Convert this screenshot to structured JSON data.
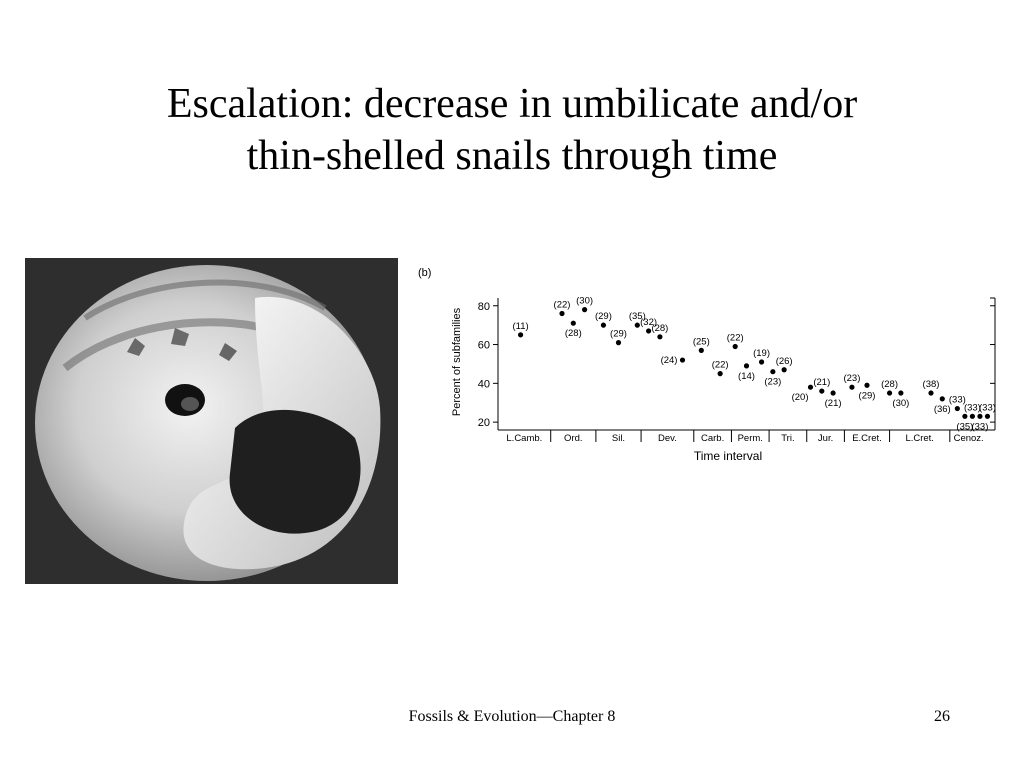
{
  "slide": {
    "title_line1": "Escalation: decrease in umbilicate and/or",
    "title_line2": "thin-shelled snails through time",
    "footer": "Fossils & Evolution—Chapter 8",
    "page_number": "26"
  },
  "photo": {
    "subject": "umbilicate snail shell"
  },
  "chart_data": {
    "type": "scatter",
    "panel_label": "(b)",
    "ylabel": "Percent of subfamilies",
    "xlabel": "Time interval",
    "ylim": [
      18,
      84
    ],
    "yticks": [
      20,
      40,
      60,
      80
    ],
    "categories": [
      "L.Camb.",
      "Ord.",
      "Sil.",
      "Dev.",
      "Carb.",
      "Perm.",
      "Tri.",
      "Jur.",
      "E.Cret.",
      "L.Cret.",
      "Cenoz."
    ],
    "category_spans": [
      [
        0,
        1.4
      ],
      [
        1.4,
        2.6
      ],
      [
        2.6,
        3.8
      ],
      [
        3.8,
        5.2
      ],
      [
        5.2,
        6.2
      ],
      [
        6.2,
        7.2
      ],
      [
        7.2,
        8.2
      ],
      [
        8.2,
        9.2
      ],
      [
        9.2,
        10.4
      ],
      [
        10.4,
        12.0
      ],
      [
        12.0,
        13.0
      ]
    ],
    "points": [
      {
        "x": 0.6,
        "y": 65,
        "label": "(11)",
        "label_pos": "above"
      },
      {
        "x": 1.7,
        "y": 76,
        "label": "(22)",
        "label_pos": "above"
      },
      {
        "x": 2.0,
        "y": 71,
        "label": "(28)",
        "label_pos": "below"
      },
      {
        "x": 2.3,
        "y": 78,
        "label": "(30)",
        "label_pos": "above"
      },
      {
        "x": 2.8,
        "y": 70,
        "label": "(29)",
        "label_pos": "above"
      },
      {
        "x": 3.2,
        "y": 61,
        "label": "(29)",
        "label_pos": "above"
      },
      {
        "x": 3.7,
        "y": 70,
        "label": "(35)",
        "label_pos": "above"
      },
      {
        "x": 4.0,
        "y": 67,
        "label": "(32)",
        "label_pos": "above"
      },
      {
        "x": 4.3,
        "y": 64,
        "label": "(28)",
        "label_pos": "above"
      },
      {
        "x": 4.9,
        "y": 52,
        "label": "(24)",
        "label_pos": "left"
      },
      {
        "x": 5.4,
        "y": 57,
        "label": "(25)",
        "label_pos": "above"
      },
      {
        "x": 5.9,
        "y": 45,
        "label": "(22)",
        "label_pos": "above"
      },
      {
        "x": 6.3,
        "y": 59,
        "label": "(22)",
        "label_pos": "above"
      },
      {
        "x": 6.6,
        "y": 49,
        "label": "(14)",
        "label_pos": "below"
      },
      {
        "x": 7.0,
        "y": 51,
        "label": "(19)",
        "label_pos": "above"
      },
      {
        "x": 7.3,
        "y": 46,
        "label": "(23)",
        "label_pos": "below"
      },
      {
        "x": 7.6,
        "y": 47,
        "label": "(26)",
        "label_pos": "above"
      },
      {
        "x": 8.3,
        "y": 38,
        "label": "(20)",
        "label_pos": "below-left"
      },
      {
        "x": 8.6,
        "y": 36,
        "label": "(21)",
        "label_pos": "above"
      },
      {
        "x": 8.9,
        "y": 35,
        "label": "(21)",
        "label_pos": "below"
      },
      {
        "x": 9.4,
        "y": 38,
        "label": "(23)",
        "label_pos": "above"
      },
      {
        "x": 9.8,
        "y": 39,
        "label": "(29)",
        "label_pos": "below"
      },
      {
        "x": 10.4,
        "y": 35,
        "label": "(28)",
        "label_pos": "above"
      },
      {
        "x": 10.7,
        "y": 35,
        "label": "(30)",
        "label_pos": "below"
      },
      {
        "x": 11.5,
        "y": 35,
        "label": "(38)",
        "label_pos": "above"
      },
      {
        "x": 11.8,
        "y": 32,
        "label": "(36)",
        "label_pos": "below"
      },
      {
        "x": 12.2,
        "y": 27,
        "label": "(33)",
        "label_pos": "above"
      },
      {
        "x": 12.4,
        "y": 23,
        "label": "(35)",
        "label_pos": "below"
      },
      {
        "x": 12.6,
        "y": 23,
        "label": "(33)",
        "label_pos": "above"
      },
      {
        "x": 12.8,
        "y": 23,
        "label": "(33)",
        "label_pos": "below"
      },
      {
        "x": 13.0,
        "y": 23,
        "label": "(33)",
        "label_pos": "above"
      }
    ],
    "grid": false
  }
}
